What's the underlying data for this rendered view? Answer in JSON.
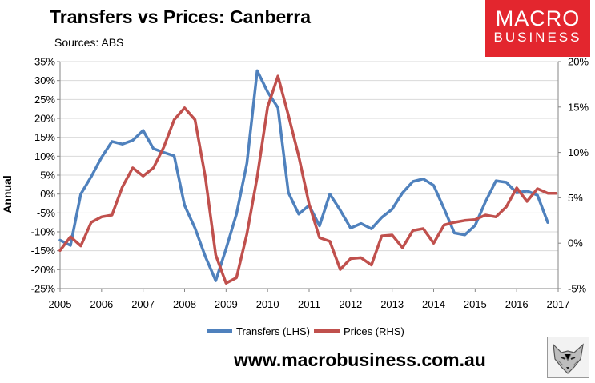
{
  "header": {
    "title": "Transfers vs Prices: Canberra",
    "subtitle": "Sources: ABS"
  },
  "logo": {
    "line1": "MACRO",
    "line2": "BUSINESS",
    "color": "#e3262e"
  },
  "footer": {
    "url": "www.macrobusiness.com.au"
  },
  "chart_data": {
    "type": "line",
    "ylabel": "Annual",
    "grid": true,
    "legend_position": "bottom",
    "x_ticks": [
      "2005",
      "2006",
      "2007",
      "2008",
      "2009",
      "2010",
      "2011",
      "2012",
      "2013",
      "2014",
      "2015",
      "2016",
      "2017"
    ],
    "x_range": [
      2005,
      2017
    ],
    "y_left": {
      "range": [
        -25,
        35
      ],
      "step": 5,
      "format": "percent",
      "ticks": [
        "-25%",
        "-20%",
        "-15%",
        "-10%",
        "-5%",
        "0%",
        "5%",
        "10%",
        "15%",
        "20%",
        "25%",
        "30%",
        "35%"
      ]
    },
    "y_right": {
      "range": [
        -5,
        20
      ],
      "step": 5,
      "format": "percent",
      "ticks": [
        "-5%",
        "0%",
        "5%",
        "10%",
        "15%",
        "20%"
      ]
    },
    "series": [
      {
        "name": "Transfers (LHS)",
        "axis": "left",
        "color": "#4f81bd",
        "x": [
          2005.0,
          2005.25,
          2005.5,
          2005.75,
          2006.0,
          2006.25,
          2006.5,
          2006.75,
          2007.0,
          2007.25,
          2007.5,
          2007.75,
          2008.0,
          2008.25,
          2008.5,
          2008.75,
          2009.0,
          2009.25,
          2009.5,
          2009.75,
          2010.0,
          2010.25,
          2010.5,
          2010.75,
          2011.0,
          2011.25,
          2011.5,
          2011.75,
          2012.0,
          2012.25,
          2012.5,
          2012.75,
          2013.0,
          2013.25,
          2013.5,
          2013.75,
          2014.0,
          2014.25,
          2014.5,
          2014.75,
          2015.0,
          2015.25,
          2015.5,
          2015.75,
          2016.0,
          2016.25,
          2016.5,
          2016.75
        ],
        "values": [
          -12.2,
          -13.6,
          0.0,
          4.6,
          9.7,
          13.9,
          13.2,
          14.2,
          16.8,
          12.0,
          11.0,
          10.1,
          -3.0,
          -9.0,
          -16.5,
          -22.9,
          -14.5,
          -5.3,
          8.1,
          32.6,
          27.0,
          22.8,
          0.4,
          -5.3,
          -3.0,
          -8.4,
          0.0,
          -4.3,
          -9.0,
          -7.8,
          -9.2,
          -6.2,
          -4.0,
          0.3,
          3.3,
          4.0,
          2.3,
          -3.9,
          -10.3,
          -10.8,
          -8.3,
          -2.0,
          3.5,
          3.1,
          0.3,
          0.8,
          -0.3,
          -7.5
        ]
      },
      {
        "name": "Prices (RHS)",
        "axis": "right",
        "color": "#c0504d",
        "x": [
          2005.0,
          2005.25,
          2005.5,
          2005.75,
          2006.0,
          2006.25,
          2006.5,
          2006.75,
          2007.0,
          2007.25,
          2007.5,
          2007.75,
          2008.0,
          2008.25,
          2008.5,
          2008.75,
          2009.0,
          2009.25,
          2009.5,
          2009.75,
          2010.0,
          2010.25,
          2010.5,
          2010.75,
          2011.0,
          2011.25,
          2011.5,
          2011.75,
          2012.0,
          2012.25,
          2012.5,
          2012.75,
          2013.0,
          2013.25,
          2013.5,
          2013.75,
          2014.0,
          2014.25,
          2014.5,
          2014.75,
          2015.0,
          2015.25,
          2015.5,
          2015.75,
          2016.0,
          2016.25,
          2016.5,
          2016.75,
          2016.95
        ],
        "values": [
          -0.8,
          0.7,
          -0.3,
          2.3,
          2.9,
          3.1,
          6.2,
          8.3,
          7.4,
          8.3,
          10.6,
          13.6,
          14.9,
          13.6,
          7.3,
          -1.3,
          -4.4,
          -3.8,
          1.0,
          7.3,
          15.0,
          18.4,
          14.1,
          9.6,
          4.3,
          0.6,
          0.2,
          -2.9,
          -1.7,
          -1.6,
          -2.4,
          0.8,
          0.9,
          -0.5,
          1.4,
          1.6,
          0.0,
          2.0,
          2.3,
          2.5,
          2.6,
          3.1,
          2.9,
          4.0,
          6.1,
          4.6,
          6.0,
          5.5,
          5.5
        ]
      }
    ]
  }
}
